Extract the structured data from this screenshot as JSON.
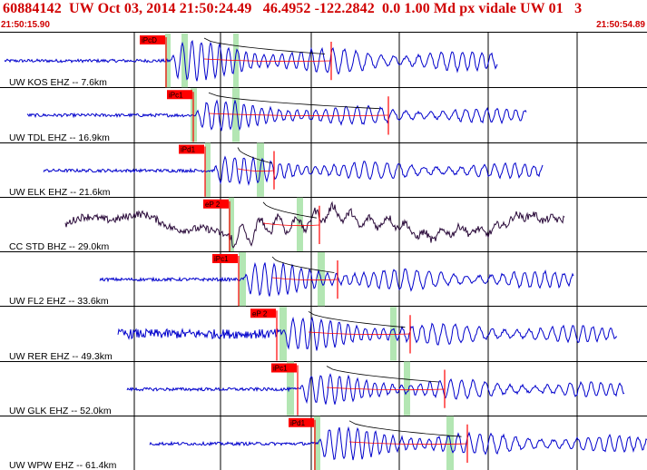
{
  "header": {
    "title": "60884142  UW Oct 03, 2014 21:50:24.49   46.4952 -122.2842  0.0 1.00 Md px vidale UW 01   3",
    "start_time": "21:50:15.90",
    "end_time": "21:50:54.89"
  },
  "colors": {
    "header_text": "#d00000",
    "trace": "#0000cc",
    "trace_alt": "#2a0a3a",
    "pick_box": "#ff0000",
    "pick_line": "#ff0000",
    "window_band": "#b3e6b3",
    "grid": "#000000",
    "fit_curve": "#000000",
    "coda_curve": "#ff0000"
  },
  "channels": [
    {
      "label": "UW KOS EHZ -- 7.6km",
      "pick": "iPcD",
      "color": "trace"
    },
    {
      "label": "UW TDL EHZ -- 16.9km",
      "pick": "iPc1",
      "color": "trace"
    },
    {
      "label": "UW ELK EHZ -- 21.6km",
      "pick": "iPd1",
      "color": "trace"
    },
    {
      "label": "CC STD BHZ -- 29.0km",
      "pick": "eP 2",
      "color": "trace_alt"
    },
    {
      "label": "UW FL2 EHZ -- 33.6km",
      "pick": "iPc1",
      "color": "trace"
    },
    {
      "label": "UW RER EHZ -- 49.3km",
      "pick": "eP 2",
      "color": "trace"
    },
    {
      "label": "UW GLK EHZ -- 52.0km",
      "pick": "iPc1",
      "color": "trace"
    },
    {
      "label": "UW WPW EHZ -- 61.4km",
      "pick": "iPd1",
      "color": "trace"
    }
  ]
}
